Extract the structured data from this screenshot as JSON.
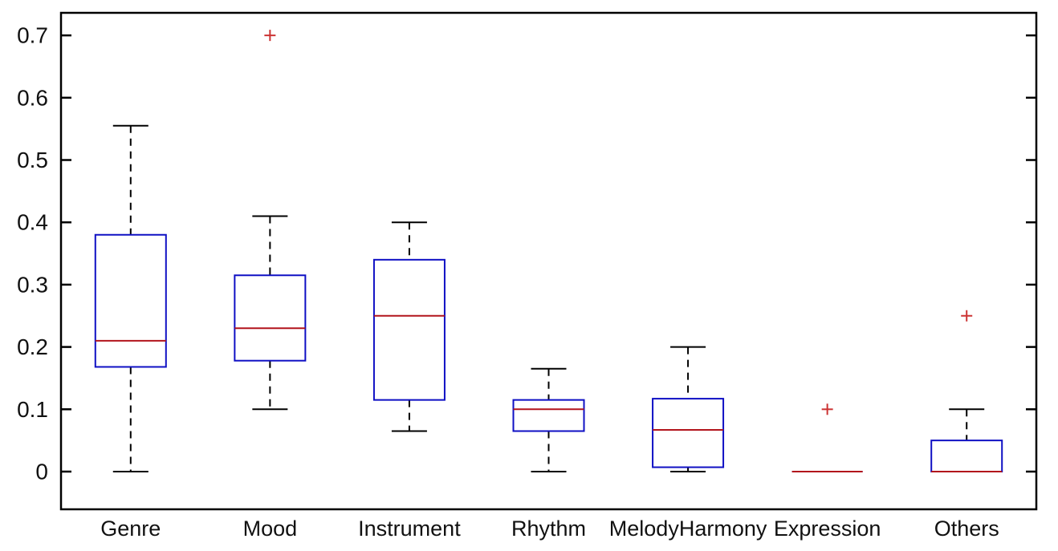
{
  "figure": {
    "background": "#ffffff"
  },
  "chart_data": {
    "type": "boxplot",
    "title": "",
    "xlabel": "",
    "ylabel": "",
    "grid": false,
    "legend": "none",
    "categories": [
      "Genre",
      "Mood",
      "Instrument",
      "Rhythm",
      "MelodyHarmony",
      "Expression",
      "Others"
    ],
    "y_ticks": [
      0,
      0.1,
      0.2,
      0.3,
      0.4,
      0.5,
      0.6,
      0.7
    ],
    "y_tick_labels": [
      "0",
      "0.1",
      "0.2",
      "0.3",
      "0.4",
      "0.5",
      "0.6",
      "0.7"
    ],
    "ylim": [
      -0.0605,
      0.7362
    ],
    "series": [
      {
        "name": "Genre",
        "whisker_low": 0,
        "q1": 0.168,
        "median": 0.21,
        "q3": 0.38,
        "whisker_high": 0.555,
        "outliers": []
      },
      {
        "name": "Mood",
        "whisker_low": 0.1,
        "q1": 0.178,
        "median": 0.23,
        "q3": 0.315,
        "whisker_high": 0.41,
        "outliers": [
          0.7
        ]
      },
      {
        "name": "Instrument",
        "whisker_low": 0.065,
        "q1": 0.115,
        "median": 0.25,
        "q3": 0.34,
        "whisker_high": 0.4,
        "outliers": []
      },
      {
        "name": "Rhythm",
        "whisker_low": 0,
        "q1": 0.065,
        "median": 0.1,
        "q3": 0.115,
        "whisker_high": 0.165,
        "outliers": []
      },
      {
        "name": "MelodyHarmony",
        "whisker_low": 0,
        "q1": 0.007,
        "median": 0.067,
        "q3": 0.117,
        "whisker_high": 0.2,
        "outliers": []
      },
      {
        "name": "Expression",
        "whisker_low": 0,
        "q1": 0,
        "median": 0,
        "q3": 0,
        "whisker_high": 0,
        "outliers": [
          0.1
        ]
      },
      {
        "name": "Others",
        "whisker_low": 0,
        "q1": 0,
        "median": 0,
        "q3": 0.05,
        "whisker_high": 0.1,
        "outliers": [
          0.25
        ]
      }
    ],
    "colors": {
      "box": "#0f10c4",
      "median": "#b2141c",
      "whisker": "#000000",
      "outlier": "#cc3333",
      "axis": "#000000",
      "tick_label": "#111111"
    }
  }
}
